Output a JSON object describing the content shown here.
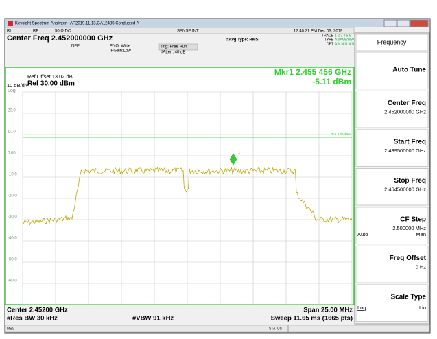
{
  "window": {
    "title": "Keysight Spectrum Analyzer - AP2019.11.13,GA12485,Conducted A"
  },
  "status_bar": {
    "rl": "RL",
    "rf": "RF",
    "input": "50 Ω  DC",
    "sense": "SENSE:INT",
    "datetime": "12:40:21 PM Dec 03, 2019",
    "trace_label": "TRACE",
    "trace_values": "1 2 3 4 5 6",
    "type_label": "TYPE",
    "type_values": "A WWWWW",
    "det_label": "DET",
    "det_values": "A N N N N N"
  },
  "header": {
    "center_freq": "Center Freq 2.452000000 GHz",
    "nfe": "NFE",
    "pno": "PNO: Wide",
    "ifgain": "IFGain:Low",
    "trig": "Trig: Free Run",
    "atten": "#Atten: 40 dB",
    "avg_type": "#Avg Type: RMS"
  },
  "display": {
    "ref_offset": "Ref Offset 13.02 dB",
    "scale": "10 dB/div",
    "ref_level": "Ref 30.00 dBm",
    "scale_type": "Log",
    "marker_freq": "Mkr1 2.455 456 GHz",
    "marker_level": "-5.11 dBm",
    "marker_id": "1",
    "display_line": "DL1 5.00 dBm",
    "y_labels": [
      "20.0",
      "10.0",
      "0.00",
      "-10.0",
      "-20.0",
      "-30.0",
      "-40.0",
      "-50.0",
      "-60.0"
    ]
  },
  "footer": {
    "center": "Center 2.45200 GHz",
    "rbw": "#Res BW 30 kHz",
    "vbw": "#VBW 91 kHz",
    "span": "Span 25.00 MHz",
    "sweep": "Sweep  11.65 ms (1665 pts)",
    "msg": "MSG",
    "status": "STATUS"
  },
  "menu": {
    "title": "Frequency",
    "items": [
      {
        "label": "Auto Tune"
      },
      {
        "label": "Center Freq",
        "value": "2.452000000 GHz"
      },
      {
        "label": "Start Freq",
        "value": "2.439500000 GHz"
      },
      {
        "label": "Stop Freq",
        "value": "2.464500000 GHz"
      },
      {
        "label": "CF Step",
        "value": "2.500000 MHz",
        "left": "Auto",
        "right": "Man"
      },
      {
        "label": "Freq Offset",
        "value": "0 Hz"
      },
      {
        "label": "Scale Type",
        "left": "Log",
        "right": "Lin"
      }
    ]
  }
}
